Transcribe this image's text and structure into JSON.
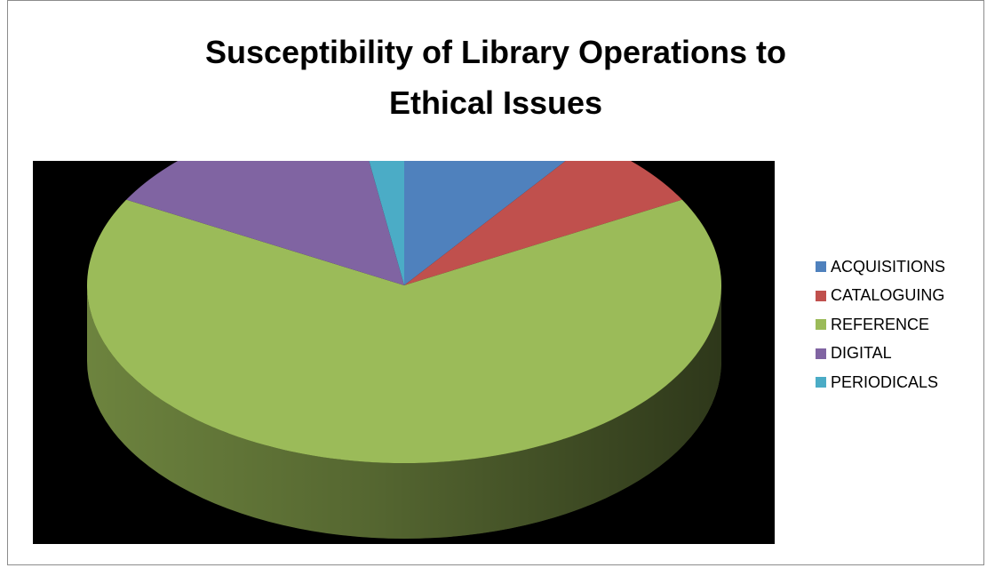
{
  "chart_data": {
    "type": "pie",
    "title": "Susceptibility of Library Operations to Ethical Issues",
    "categories": [
      "ACQUISITIONS",
      "CATALOGUING",
      "REFERENCE",
      "DIGITAL",
      "PERIODICALS"
    ],
    "values": [
      10,
      7,
      66,
      14.5,
      2.5
    ],
    "colors": [
      "#4f81bd",
      "#c0504d",
      "#9bbb59",
      "#8064a2",
      "#4bacc6"
    ],
    "style": "3d",
    "legend_position": "right",
    "plot_background": "#000000"
  }
}
